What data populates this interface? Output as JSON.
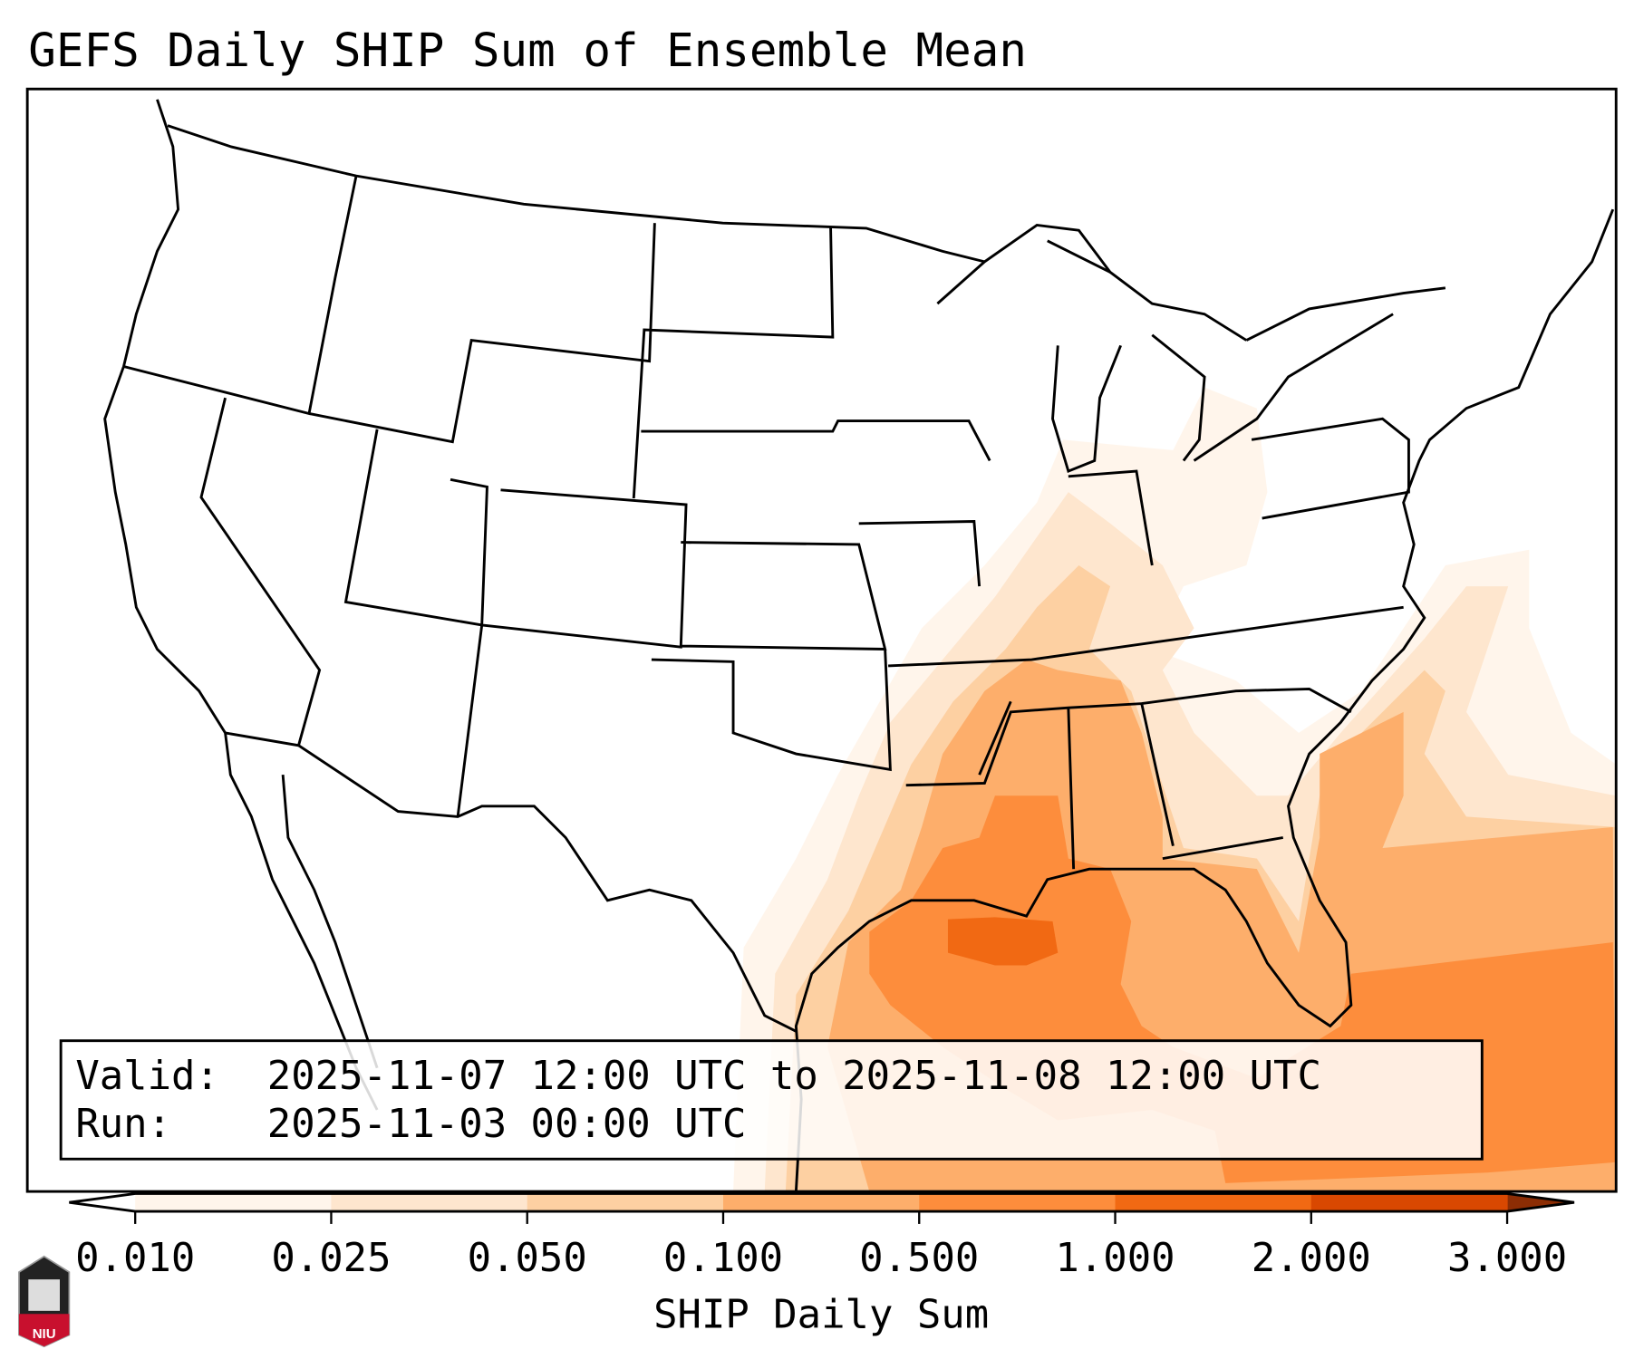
{
  "title": "GEFS Daily SHIP Sum of Ensemble Mean",
  "info": {
    "valid_label": "Valid:",
    "valid_value": "2025-11-07 12:00 UTC to 2025-11-08 12:00 UTC",
    "run_label": "Run:",
    "run_value": "2025-11-03 00:00 UTC"
  },
  "colorbar": {
    "label": "SHIP Daily Sum",
    "ticks": [
      "0.010",
      "0.025",
      "0.050",
      "0.100",
      "0.500",
      "1.000",
      "2.000",
      "3.000"
    ],
    "colors": [
      "#fff5eb",
      "#fee6ce",
      "#fdd0a2",
      "#fdae6b",
      "#fd8d3c",
      "#f16913",
      "#d94801"
    ],
    "under_color": "#ffffff",
    "over_color": "#8c2d04"
  },
  "logo": {
    "text": "NIU"
  },
  "chart_data": {
    "type": "heatmap",
    "title": "GEFS Daily SHIP Sum of Ensemble Mean",
    "levels": [
      0.01,
      0.025,
      0.05,
      0.1,
      0.5,
      1.0,
      2.0,
      3.0
    ],
    "units_label": "SHIP Daily Sum",
    "region": "Continental United States",
    "max_area": "Central Gulf of Mexico (1.0-2.0)"
  }
}
